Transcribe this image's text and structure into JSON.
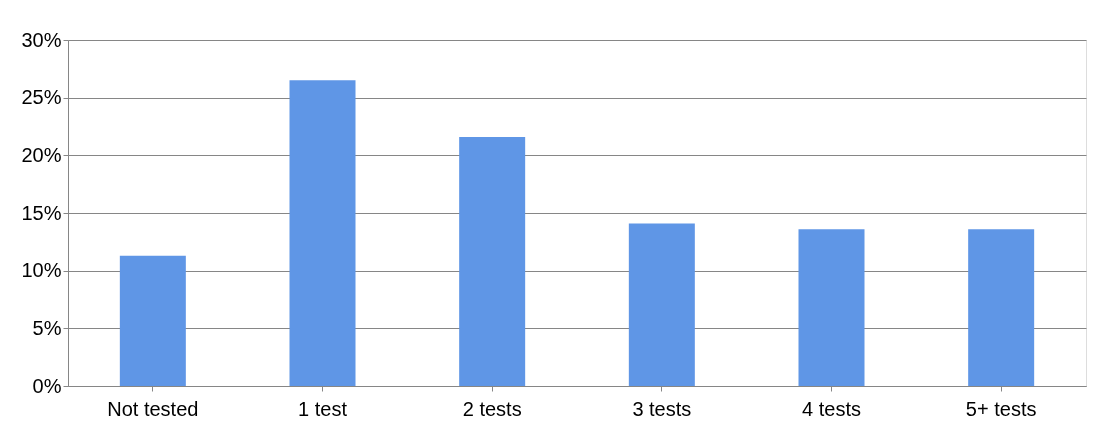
{
  "chart_data": {
    "type": "bar",
    "categories": [
      "Not tested",
      "1 test",
      "2 tests",
      "3 tests",
      "4 tests",
      "5+ tests"
    ],
    "values": [
      11.3,
      26.5,
      21.6,
      14.1,
      13.6,
      13.6
    ],
    "color": "#5f96e6",
    "ylim": [
      0,
      30
    ],
    "yticks": [
      {
        "value": 0,
        "label": "0%"
      },
      {
        "value": 5,
        "label": "5%"
      },
      {
        "value": 10,
        "label": "10%"
      },
      {
        "value": 15,
        "label": "15%"
      },
      {
        "value": 20,
        "label": "20%"
      },
      {
        "value": 25,
        "label": "25%"
      },
      {
        "value": 30,
        "label": "30%"
      }
    ],
    "grid": "y"
  }
}
